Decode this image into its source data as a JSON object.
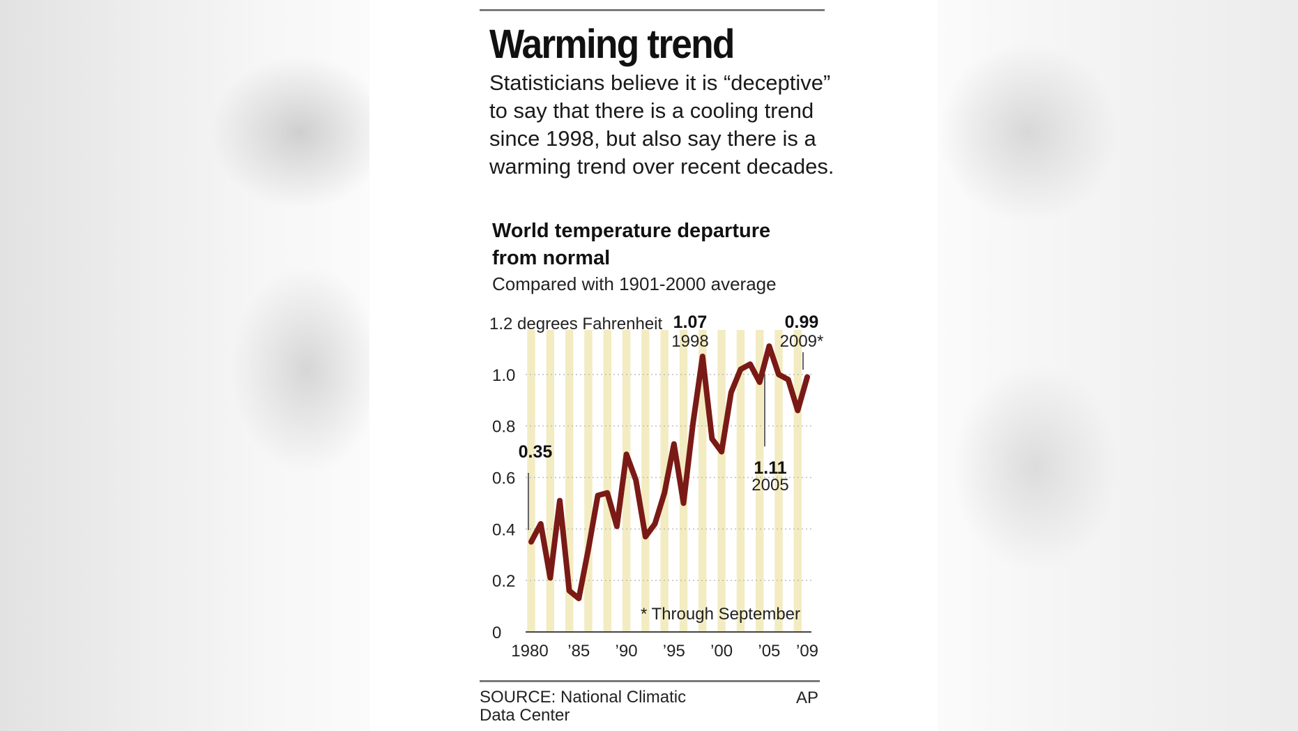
{
  "title": "Warming trend",
  "subtitle": "Statisticians believe it is “deceptive” to say that there is a cooling trend since 1998, but also say there is a warming trend over recent decades.",
  "source": "SOURCE: National Climatic Data Center",
  "credit": "AP",
  "colors": {
    "line": "#7a1a16",
    "stripe": "#f3ecc2",
    "grid": "#bdbdbd",
    "text": "#111111"
  },
  "chart_data": {
    "type": "line",
    "title": "World temperature departure from normal",
    "subtitle": "Compared with 1901-2000 average",
    "ylabel": "1.2 degrees Fahrenheit",
    "ylim": [
      0,
      1.2
    ],
    "yticks": [
      {
        "value": 0,
        "label": "0"
      },
      {
        "value": 0.2,
        "label": "0.2"
      },
      {
        "value": 0.4,
        "label": "0.4"
      },
      {
        "value": 0.6,
        "label": "0.6"
      },
      {
        "value": 0.8,
        "label": "0.8"
      },
      {
        "value": 1.0,
        "label": "1.0"
      },
      {
        "value": 1.2,
        "label": "1.2 degrees Fahrenheit"
      }
    ],
    "xlim": [
      1980,
      2009
    ],
    "xticks": [
      {
        "value": 1980,
        "label": "1980"
      },
      {
        "value": 1985,
        "label": "’85"
      },
      {
        "value": 1990,
        "label": "’90"
      },
      {
        "value": 1995,
        "label": "’95"
      },
      {
        "value": 2000,
        "label": "’00"
      },
      {
        "value": 2005,
        "label": "’05"
      },
      {
        "value": 2009,
        "label": "’09"
      }
    ],
    "grid": true,
    "x": [
      1980,
      1981,
      1982,
      1983,
      1984,
      1985,
      1986,
      1987,
      1988,
      1989,
      1990,
      1991,
      1992,
      1993,
      1994,
      1995,
      1996,
      1997,
      1998,
      1999,
      2000,
      2001,
      2002,
      2003,
      2004,
      2005,
      2006,
      2007,
      2008,
      2009
    ],
    "values": [
      0.35,
      0.42,
      0.21,
      0.51,
      0.16,
      0.13,
      0.32,
      0.53,
      0.54,
      0.41,
      0.69,
      0.59,
      0.37,
      0.42,
      0.54,
      0.73,
      0.5,
      0.81,
      1.07,
      0.75,
      0.7,
      0.93,
      1.02,
      1.04,
      0.97,
      1.11,
      1.0,
      0.98,
      0.86,
      0.99
    ],
    "annotations": [
      {
        "year": 1980,
        "value_label": "0.35",
        "year_label": ""
      },
      {
        "year": 1998,
        "value_label": "1.07",
        "year_label": "1998"
      },
      {
        "year": 2005,
        "value_label": "1.11",
        "year_label": "2005"
      },
      {
        "year": 2009,
        "value_label": "0.99",
        "year_label": "2009*"
      }
    ],
    "note": "* Through September"
  }
}
